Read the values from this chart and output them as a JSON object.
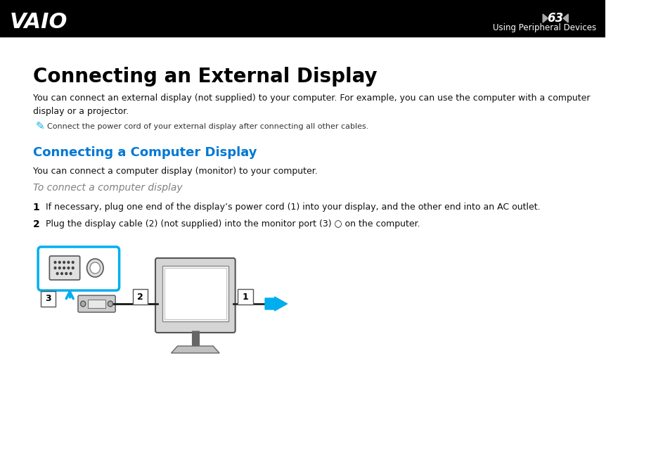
{
  "bg_color": "#ffffff",
  "header_bg": "#000000",
  "header_text_color": "#ffffff",
  "header_page_num": "63",
  "header_subtitle": "Using Peripheral Devices",
  "title1": "Connecting an External Display",
  "body1": "You can connect an external display (not supplied) to your computer. For example, you can use the computer with a computer\ndisplay or a projector.",
  "note_text": "Connect the power cord of your external display after connecting all other cables.",
  "title2": "Connecting a Computer Display",
  "title2_color": "#0078D4",
  "body2": "You can connect a computer display (monitor) to your computer.",
  "subheading": "To connect a computer display",
  "subheading_color": "#808080",
  "step1": "If necessary, plug one end of the display’s power cord (1) into your display, and the other end into an AC outlet.",
  "step2": "Plug the display cable (2) (not supplied) into the monitor port (3) ○ on the computer.",
  "accent_color": "#00AEEF",
  "lm": 52
}
